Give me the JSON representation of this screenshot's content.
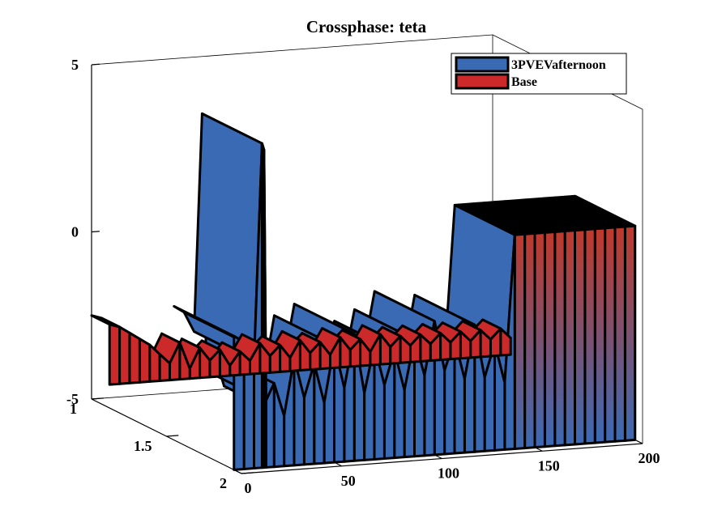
{
  "chart_data": {
    "type": "area",
    "title": "Crossphase: teta",
    "xlabel": "",
    "ylabel": "",
    "zlabel": "",
    "x_ticks": [
      "0",
      "50",
      "100",
      "150",
      "200"
    ],
    "y_ticks": [
      "1",
      "1.5",
      "2"
    ],
    "z_ticks": [
      "-5",
      "0",
      "5"
    ],
    "xlim": [
      0,
      200
    ],
    "ylim": [
      1,
      2
    ],
    "zlim": [
      -5,
      5
    ],
    "grid": false,
    "legend_position": "top-right",
    "series": [
      {
        "name": "3PVEVafternoon",
        "color": "#3b6ab5",
        "row": 2,
        "x": [
          0,
          5,
          10,
          14,
          15,
          16,
          20,
          25,
          30,
          35,
          40,
          45,
          50,
          55,
          60,
          65,
          70,
          75,
          80,
          85,
          90,
          95,
          100,
          105,
          110,
          115,
          120,
          125,
          130,
          135,
          140,
          145,
          150,
          155,
          160,
          165,
          170,
          175,
          180,
          185,
          190,
          195,
          200
        ],
        "z": [
          -1.0,
          -1.2,
          -1.8,
          4.7,
          4.5,
          -3.0,
          -2.5,
          -3.5,
          -1.8,
          -3.0,
          -2.0,
          -3.2,
          -1.5,
          -2.8,
          -1.2,
          -3.0,
          -1.6,
          -2.8,
          -1.8,
          -3.0,
          -1.5,
          -2.6,
          -1.0,
          -2.5,
          -1.6,
          -2.8,
          -1.2,
          -2.8,
          -1.8,
          -3.0,
          1.4,
          1.4,
          1.4,
          1.4,
          1.4,
          1.4,
          1.4,
          1.4,
          1.4,
          1.4,
          1.4,
          1.4,
          1.4
        ]
      },
      {
        "name": "Base",
        "color": "#cc2a2a",
        "row": 1,
        "x": [
          0,
          5,
          10,
          15,
          20,
          25,
          30,
          35,
          40,
          45,
          50,
          55,
          60,
          65,
          70,
          75,
          80,
          85,
          90,
          95,
          100,
          105,
          110,
          115,
          120,
          125,
          130,
          135,
          140,
          145,
          150,
          155,
          160,
          165,
          170,
          175,
          180,
          185,
          190,
          195,
          200
        ],
        "z": [
          -2.5,
          -2.6,
          -2.8,
          -3.0,
          -3.2,
          -3.5,
          -3.8,
          -3.2,
          -4.0,
          -3.4,
          -3.8,
          -3.5,
          -4.0,
          -3.6,
          -3.9,
          -3.4,
          -3.8,
          -3.5,
          -3.9,
          -3.4,
          -3.8,
          -3.5,
          -3.9,
          -3.4,
          -3.8,
          -3.5,
          -3.9,
          -3.4,
          -3.8,
          -3.5,
          -3.8,
          -3.5,
          -3.8,
          -3.5,
          -3.8,
          -3.5,
          -3.8,
          -3.5,
          -3.8,
          -3.5,
          -3.8
        ]
      }
    ]
  }
}
